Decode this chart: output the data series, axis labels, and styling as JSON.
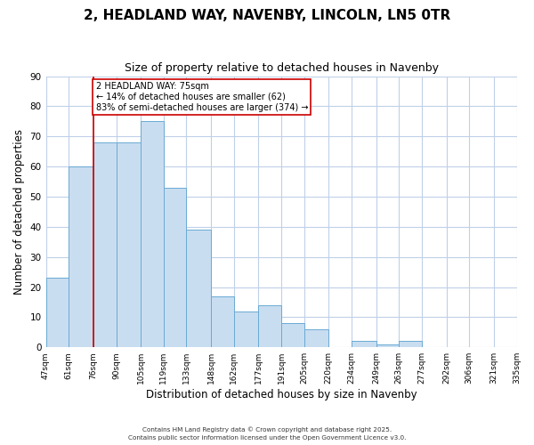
{
  "title": "2, HEADLAND WAY, NAVENBY, LINCOLN, LN5 0TR",
  "subtitle": "Size of property relative to detached houses in Navenby",
  "xlabel": "Distribution of detached houses by size in Navenby",
  "ylabel": "Number of detached properties",
  "bar_edges": [
    47,
    61,
    76,
    90,
    105,
    119,
    133,
    148,
    162,
    177,
    191,
    205,
    220,
    234,
    249,
    263,
    277,
    292,
    306,
    321,
    335
  ],
  "bar_heights": [
    23,
    60,
    68,
    68,
    75,
    53,
    39,
    17,
    12,
    14,
    8,
    6,
    0,
    2,
    1,
    2,
    0,
    0,
    0,
    0
  ],
  "bar_color": "#c9ddf0",
  "bar_edge_color": "#6aaad4",
  "vline_x": 76,
  "vline_color": "#cc0000",
  "ylim": [
    0,
    90
  ],
  "annotation_text": "2 HEADLAND WAY: 75sqm\n← 14% of detached houses are smaller (62)\n83% of semi-detached houses are larger (374) →",
  "annotation_box_color": "#ffffff",
  "annotation_box_edge_color": "#cc0000",
  "footer1": "Contains HM Land Registry data © Crown copyright and database right 2025.",
  "footer2": "Contains public sector information licensed under the Open Government Licence v3.0.",
  "background_color": "#ffffff",
  "grid_color": "#c0d0e8",
  "title_fontsize": 11,
  "subtitle_fontsize": 9,
  "tick_labels": [
    "47sqm",
    "61sqm",
    "76sqm",
    "90sqm",
    "105sqm",
    "119sqm",
    "133sqm",
    "148sqm",
    "162sqm",
    "177sqm",
    "191sqm",
    "205sqm",
    "220sqm",
    "234sqm",
    "249sqm",
    "263sqm",
    "277sqm",
    "292sqm",
    "306sqm",
    "321sqm",
    "335sqm"
  ]
}
